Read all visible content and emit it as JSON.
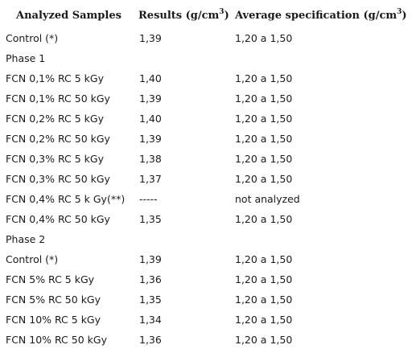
{
  "headers": {
    "samples": "Analyzed Samples",
    "results_prefix": "Results (g/cm",
    "results_exp": "3",
    "results_suffix": ")",
    "spec_prefix": "Average specification (g/cm",
    "spec_exp": "3",
    "spec_suffix": ")"
  },
  "rows": [
    {
      "sample": "Control (*)",
      "result": "1,39",
      "spec": "1,20 a 1,50"
    },
    {
      "sample": "Phase 1",
      "result": "",
      "spec": ""
    },
    {
      "sample": "FCN 0,1% RC 5 kGy",
      "result": "1,40",
      "spec": "1,20 a 1,50"
    },
    {
      "sample": "FCN 0,1% RC 50 kGy",
      "result": "1,39",
      "spec": "1,20 a 1,50"
    },
    {
      "sample": "FCN 0,2% RC 5 kGy",
      "result": "1,40",
      "spec": "1,20 a 1,50"
    },
    {
      "sample": "FCN 0,2% RC 50 kGy",
      "result": "1,39",
      "spec": "1,20 a 1,50"
    },
    {
      "sample": "FCN 0,3% RC 5 kGy",
      "result": "1,38",
      "spec": "1,20 a 1,50"
    },
    {
      "sample": "FCN 0,3% RC 50 kGy",
      "result": "1,37",
      "spec": "1,20 a 1,50"
    },
    {
      "sample": "FCN 0,4% RC 5 k Gy(**)",
      "result": "-----",
      "spec": "not analyzed"
    },
    {
      "sample": "FCN 0,4% RC 50 kGy",
      "result": "1,35",
      "spec": "1,20 a 1,50"
    },
    {
      "sample": "Phase 2",
      "result": "",
      "spec": ""
    },
    {
      "sample": "Control (*)",
      "result": "1,39",
      "spec": "1,20 a 1,50"
    },
    {
      "sample": "FCN 5% RC 5 kGy",
      "result": "1,36",
      "spec": "1,20 a 1,50"
    },
    {
      "sample": "FCN 5% RC 50 kGy",
      "result": "1,35",
      "spec": "1,20 a 1,50"
    },
    {
      "sample": "FCN 10% RC 5 kGy",
      "result": "1,34",
      "spec": "1,20 a 1,50"
    },
    {
      "sample": "FCN 10% RC 50 kGy",
      "result": "1,36",
      "spec": "1,20 a 1,50"
    }
  ]
}
